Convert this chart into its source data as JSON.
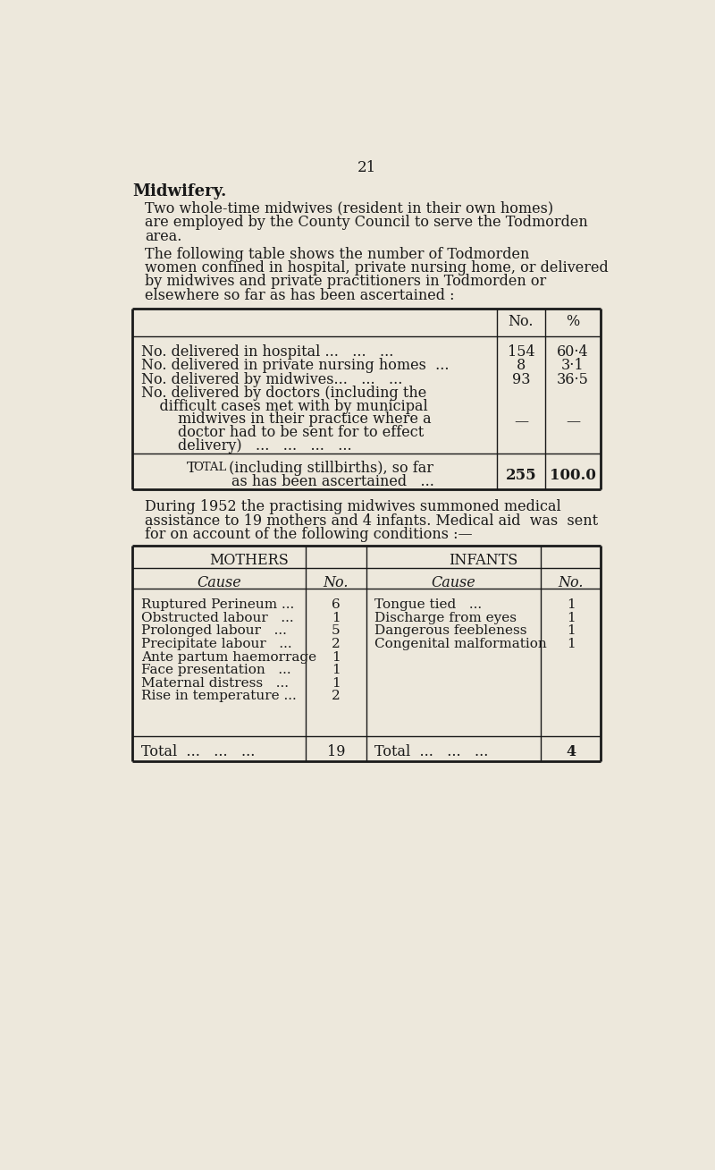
{
  "bg_color": "#ede8dc",
  "text_color": "#1a1a1a",
  "page_number": "21",
  "heading": "Midwifery.",
  "p1_lines": [
    "Two whole-time midwives (resident in their own homes)",
    "are employed by the County Council to serve the Todmorden",
    "area."
  ],
  "p2_lines": [
    "The following table shows the number of Todmorden",
    "women confined in hospital, private nursing home, or delivered",
    "by midwives and private practitioners in Todmorden or",
    "elsewhere so far as has been ascertained :"
  ],
  "p3_lines": [
    "During 1952 the practising midwives summoned medical",
    "assistance to 19 mothers and 4 infants. Medical aid  was  sent",
    "for on account of the following conditions :—"
  ],
  "t1_row1_label": "No. delivered in hospital ...   ...   ...",
  "t1_row1_no": "154",
  "t1_row1_pct": "60·4",
  "t1_row2_label": "No. delivered in private nursing homes  ...",
  "t1_row2_no": "8",
  "t1_row2_pct": "3·1",
  "t1_row3_label": "No. delivered by midwives...   ...   ...",
  "t1_row3_no": "93",
  "t1_row3_pct": "36·5",
  "t1_row4_lines": [
    "No. delivered by doctors (including the",
    "    difficult cases met with by municipal",
    "        midwives in their practice where a",
    "        doctor had to be sent for to effect",
    "        delivery)   ...   ...   ...   ..."
  ],
  "t1_row4_no": "—",
  "t1_row4_pct": "—",
  "t1_total_line1": "Tᴏᴛᴀʟ (including stillbirths), so far",
  "t1_total_line2": "as has been ascertained   ...",
  "t1_total_no": "255",
  "t1_total_pct": "100.0",
  "mothers_causes": [
    {
      "cause": "Ruptured Perineum ...",
      "no": "6"
    },
    {
      "cause": "Obstructed labour   ...",
      "no": "1"
    },
    {
      "cause": "Prolonged labour   ...",
      "no": "5"
    },
    {
      "cause": "Precipitate labour   ...",
      "no": "2"
    },
    {
      "cause": "Ante partum haemorrage",
      "no": "1"
    },
    {
      "cause": "Face presentation   ...",
      "no": "1"
    },
    {
      "cause": "Maternal distress   ...",
      "no": "1"
    },
    {
      "cause": "Rise in temperature ...",
      "no": "2"
    }
  ],
  "infants_causes": [
    {
      "cause": "Tongue tied   ...",
      "no": "1"
    },
    {
      "cause": "Discharge from eyes",
      "no": "1"
    },
    {
      "cause": "Dangerous feebleness",
      "no": "1"
    },
    {
      "cause": "Congenital malformation",
      "no": "1"
    }
  ],
  "mothers_total": "19",
  "infants_total": "4"
}
